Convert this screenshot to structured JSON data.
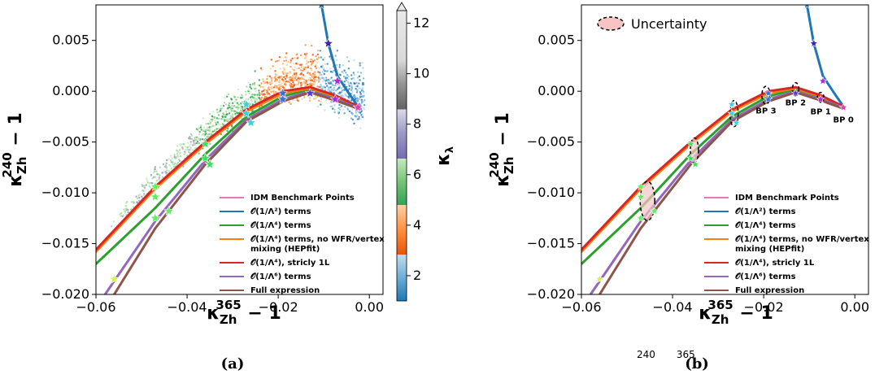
{
  "chart_data": [
    {
      "panel": "(a)",
      "type": "line",
      "xlabel": "κ_Zh^365 − 1",
      "ylabel": "κ_Zh^240 − 1",
      "xlim": [
        -0.06,
        0.003
      ],
      "ylim": [
        -0.02,
        0.0085
      ],
      "xticks": [
        "−0.06",
        "−0.04",
        "−0.02",
        "0.00"
      ],
      "yticks": [
        "−0.020",
        "−0.015",
        "−0.010",
        "−0.005",
        "0.000",
        "0.005"
      ],
      "colorbar": {
        "label": "κ_λ",
        "range": [
          1,
          12.5
        ],
        "ticks": [
          "2",
          "4",
          "6",
          "8",
          "10",
          "12"
        ]
      },
      "series": [
        {
          "name": "IDM Benchmark Points",
          "color": "#e377c2"
        },
        {
          "name": "𝒪(1/Λ²) terms",
          "color": "#1f77b4",
          "x": [
            -0.0105,
            -0.009,
            -0.007,
            -0.0045,
            -0.0025
          ],
          "y": [
            0.0085,
            0.0047,
            0.0015,
            -0.0002,
            -0.0015
          ]
        },
        {
          "name": "𝒪(1/Λ⁴) terms",
          "color": "#2ca02c",
          "x": [
            -0.06,
            -0.047,
            -0.036,
            -0.027,
            -0.019,
            -0.013,
            -0.0075,
            -0.0025
          ],
          "y": [
            -0.017,
            -0.0115,
            -0.0062,
            -0.0025,
            -0.0005,
            0.0002,
            -0.0006,
            -0.0015
          ]
        },
        {
          "name": "𝒪(1/Λ⁴) terms, no WFR/vertex mixing (HEPfit)",
          "color": "#ff7f0e",
          "x": [
            -0.06,
            -0.047,
            -0.036,
            -0.027,
            -0.019,
            -0.013,
            -0.0075,
            -0.0025
          ],
          "y": [
            -0.0158,
            -0.0096,
            -0.0052,
            -0.002,
            -0.0002,
            0.0003,
            -0.0005,
            -0.0015
          ]
        },
        {
          "name": "𝒪(1/Λ⁴), stricly 1L",
          "color": "#d62728",
          "x": [
            -0.06,
            -0.047,
            -0.036,
            -0.027,
            -0.019,
            -0.013,
            -0.0075,
            -0.0025
          ],
          "y": [
            -0.0156,
            -0.0094,
            -0.005,
            -0.0018,
            0.0,
            0.0004,
            -0.0004,
            -0.0015
          ]
        },
        {
          "name": "𝒪(1/Λ⁶) terms",
          "color": "#9467bd",
          "x": [
            -0.058,
            -0.047,
            -0.036,
            -0.027,
            -0.019,
            -0.013,
            -0.0075,
            -0.0025
          ],
          "y": [
            -0.02,
            -0.0128,
            -0.0068,
            -0.0028,
            -0.0008,
            0.0,
            -0.0008,
            -0.0016
          ]
        },
        {
          "name": "Full expression",
          "color": "#8c564b",
          "x": [
            -0.056,
            -0.047,
            -0.036,
            -0.027,
            -0.019,
            -0.013,
            -0.0075,
            -0.0025
          ],
          "y": [
            -0.02,
            -0.0135,
            -0.0072,
            -0.003,
            -0.001,
            -0.0001,
            -0.0009,
            -0.0017
          ]
        }
      ]
    },
    {
      "panel": "(b)",
      "type": "line",
      "xlabel": "κ_Zh^365 − 1",
      "ylabel": "κ_Zh^240 − 1",
      "xlim": [
        -0.06,
        0.003
      ],
      "ylim": [
        -0.02,
        0.0085
      ],
      "xticks": [
        "−0.06",
        "−0.04",
        "−0.02",
        "0.00"
      ],
      "yticks": [
        "−0.020",
        "−0.015",
        "−0.010",
        "−0.005",
        "0.000",
        "0.005"
      ],
      "annotations": [
        "BP 0",
        "BP 1",
        "BP 2",
        "BP 3"
      ],
      "uncertainty_label": "Uncertainty",
      "series": [
        {
          "name": "IDM Benchmark Points",
          "color": "#e377c2"
        },
        {
          "name": "𝒪(1/Λ²) terms",
          "color": "#1f77b4"
        },
        {
          "name": "𝒪(1/Λ⁴) terms",
          "color": "#2ca02c"
        },
        {
          "name": "𝒪(1/Λ⁴) terms, no WFR/vertex mixing (HEPfit)",
          "color": "#ff7f0e"
        },
        {
          "name": "𝒪(1/Λ⁴), stricly 1L",
          "color": "#d62728"
        },
        {
          "name": "𝒪(1/Λ⁶) terms",
          "color": "#9467bd"
        },
        {
          "name": "Full expression",
          "color": "#8c564b"
        }
      ]
    }
  ],
  "legend_lines": [
    [
      "IDM Benchmark Points"
    ],
    [
      "𝒪(1/Λ²) terms"
    ],
    [
      "𝒪(1/Λ⁴) terms"
    ],
    [
      "𝒪(1/Λ⁴) terms, no WFR/vertex",
      "mixing (HEPfit)"
    ],
    [
      "𝒪(1/Λ⁴), stricly 1L"
    ],
    [
      "𝒪(1/Λ⁶) terms"
    ],
    [
      "Full expression"
    ]
  ],
  "labels": {
    "xlabel": "κ",
    "xsub": "Zh",
    "xsup": "365",
    "xrest": " − 1",
    "ylabel": "κ",
    "ysub": "Zh",
    "ysup": "240",
    "yrest": " − 1",
    "panel_a": "(a)",
    "panel_b": "(b)",
    "colorbar_label": "κ",
    "colorbar_sub": "λ",
    "uncertainty": "Uncertainty",
    "caption_fragment_sup1": "240",
    "caption_fragment_sup2": "365"
  }
}
